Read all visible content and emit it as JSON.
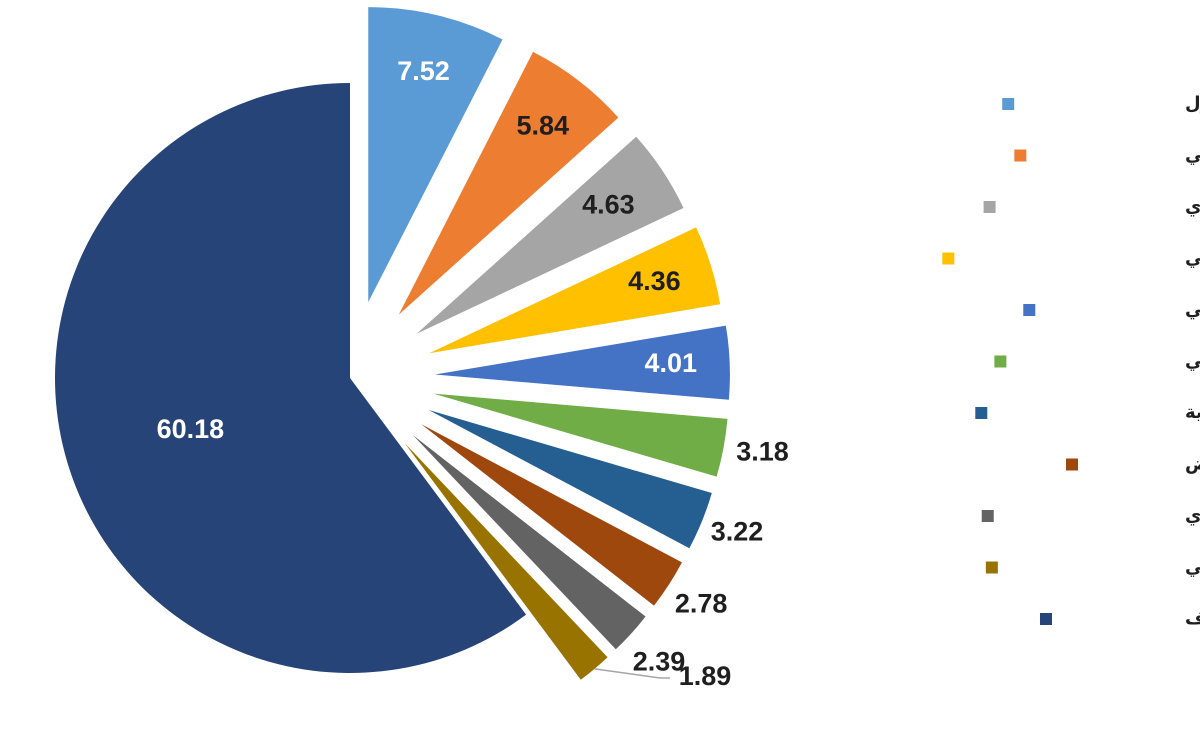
{
  "chart_data": {
    "type": "pie",
    "title": "",
    "exploded": true,
    "legend_position": "right",
    "categories": [
      "بنك ابو ظبي الأول",
      "بنك قطر الوطني",
      "البنك الأهلي التجاري",
      "بنك الامارات دبي الوطني",
      "مصرف الراجحي",
      "بنك الكويت الوطني",
      "مجموعة سامبا المالية",
      "بنك الرياض",
      "بنك ابو ظبي التجاري",
      "بيت التمويل الكويتي",
      "بقية المصارف"
    ],
    "values": [
      7.52,
      5.84,
      4.63,
      4.36,
      4.01,
      3.18,
      3.22,
      2.78,
      2.39,
      1.89,
      60.18
    ],
    "value_labels": [
      "7.52",
      "5.84",
      "4.63",
      "4.36",
      "4.01",
      "3.18",
      "3.22",
      "2.78",
      "2.39",
      "1.89",
      "60.18"
    ],
    "colors": [
      "#5B9BD5",
      "#ED7D31",
      "#A5A5A5",
      "#FFC000",
      "#4472C4",
      "#70AD47",
      "#255E91",
      "#9E480E",
      "#636363",
      "#997300",
      "#264478"
    ],
    "label_colors": [
      "#ffffff",
      "#1f1f1f",
      "#1f1f1f",
      "#1f1f1f",
      "#ffffff",
      "#1f1f1f",
      "#1f1f1f",
      "#1f1f1f",
      "#1f1f1f",
      "#1f1f1f",
      "#ffffff"
    ]
  }
}
